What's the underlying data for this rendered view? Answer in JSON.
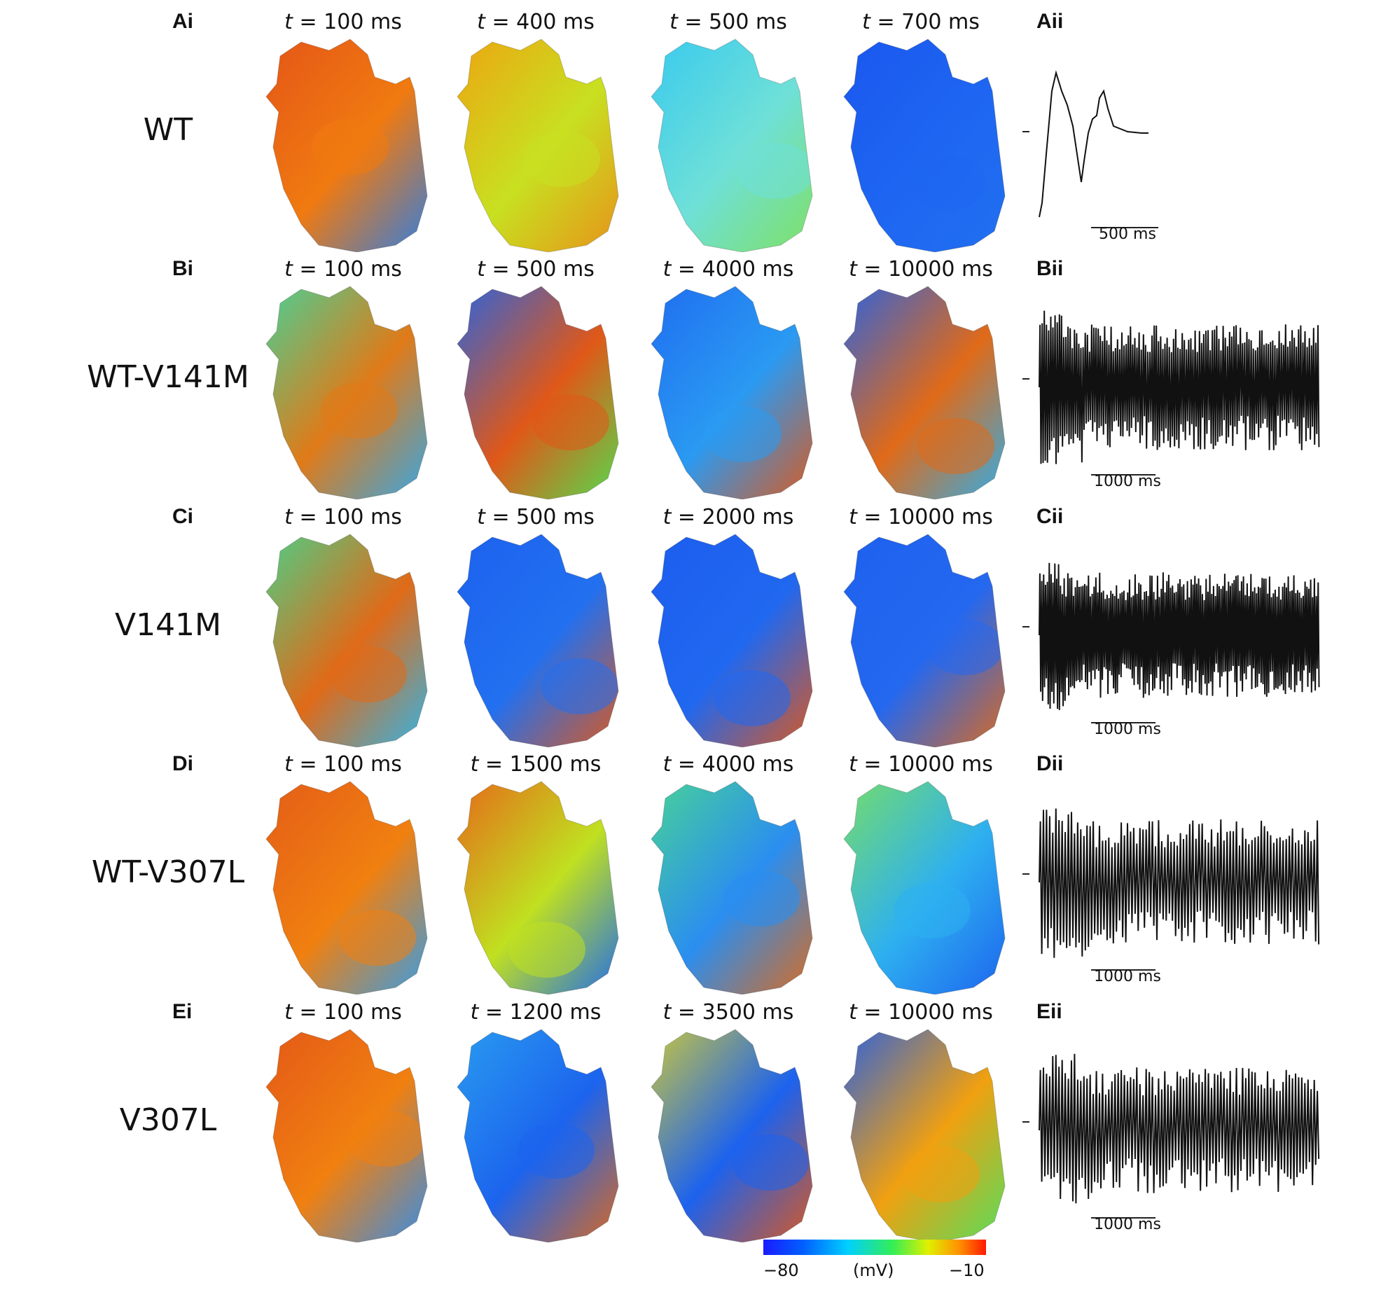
{
  "rows": [
    {
      "id": "A",
      "label_i": "Ai",
      "label_ii": "Aii",
      "condition": "WT",
      "times": [
        "100",
        "400",
        "500",
        "700"
      ],
      "scale_bar": "500 ms",
      "colors": [
        [
          "#e35318",
          "#f07a10",
          "#2b7ee6"
        ],
        [
          "#f0a010",
          "#c8e020",
          "#e8901a"
        ],
        [
          "#34c8f0",
          "#6fe0d8",
          "#7fe060"
        ],
        [
          "#1a56ee",
          "#1e66f2",
          "#2270f0"
        ]
      ]
    },
    {
      "id": "B",
      "label_i": "Bi",
      "label_ii": "Bii",
      "condition": "WT-V141M",
      "times": [
        "100",
        "500",
        "4000",
        "10000"
      ],
      "scale_bar": "1000 ms",
      "colors": [
        [
          "#3cd8a0",
          "#e07a18",
          "#2eaaf0"
        ],
        [
          "#1c64ee",
          "#e05818",
          "#4fe050"
        ],
        [
          "#1e6af0",
          "#2a9af2",
          "#e05818"
        ],
        [
          "#1e62ee",
          "#e06a18",
          "#2ab0f0"
        ]
      ]
    },
    {
      "id": "C",
      "label_i": "Ci",
      "label_ii": "Cii",
      "condition": "V141M",
      "times": [
        "100",
        "500",
        "2000",
        "10000"
      ],
      "scale_bar": "1000 ms",
      "colors": [
        [
          "#40d890",
          "#e06a18",
          "#2ab8f0"
        ],
        [
          "#1c60ee",
          "#2270f0",
          "#e05818"
        ],
        [
          "#1c5cee",
          "#2068f0",
          "#e05818"
        ],
        [
          "#1c60ee",
          "#2468f0",
          "#e06a18"
        ]
      ]
    },
    {
      "id": "D",
      "label_i": "Di",
      "label_ii": "Dii",
      "condition": "WT-V307L",
      "times": [
        "100",
        "1500",
        "4000",
        "10000"
      ],
      "scale_bar": "1000 ms",
      "colors": [
        [
          "#e35a18",
          "#f08010",
          "#2e9ef0"
        ],
        [
          "#e86018",
          "#c0e020",
          "#1c6af0"
        ],
        [
          "#4ad890",
          "#2a8ef0",
          "#e06a18"
        ],
        [
          "#7be060",
          "#2eb0f0",
          "#1c62ee"
        ]
      ]
    },
    {
      "id": "E",
      "label_i": "Ei",
      "label_ii": "Eii",
      "condition": "V307L",
      "times": [
        "100",
        "1200",
        "3500",
        "10000"
      ],
      "scale_bar": "1000 ms",
      "colors": [
        [
          "#e35518",
          "#f08010",
          "#2e8ef0"
        ],
        [
          "#2aa0f0",
          "#1c64ee",
          "#e06a18"
        ],
        [
          "#d8d030",
          "#1c62ee",
          "#e05818"
        ],
        [
          "#1c5cee",
          "#f0a010",
          "#50e060"
        ]
      ]
    }
  ],
  "time_prefix": "t",
  "time_unit": "ms",
  "colorbar": {
    "min": "−80",
    "max": "−10",
    "unit": "(mV)"
  }
}
